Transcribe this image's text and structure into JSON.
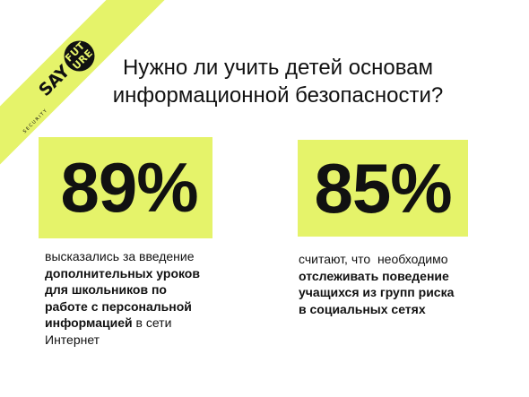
{
  "logo": {
    "say": "SAY",
    "future_line1": "FUT",
    "future_line2": "URE",
    "sub": "SECURITY"
  },
  "title": {
    "line1": "Нужно ли учить детей основам",
    "line2": "информационной безопасности?"
  },
  "stats": [
    {
      "value": "89%",
      "desc_plain_1": "высказались за введение",
      "desc_bold_1": "дополнительных уроков",
      "desc_bold_2": "для школьников по",
      "desc_bold_3": "работе с персональной",
      "desc_bold_4": "информацией",
      "desc_plain_2": " в сети",
      "desc_plain_3": "Интернет"
    },
    {
      "value": "85%",
      "desc_plain_1": "считают, что  необходимо",
      "desc_bold_1": "отслеживать поведение",
      "desc_bold_2": "учащихся из групп риска",
      "desc_bold_3": "в социальных сетях"
    }
  ],
  "colors": {
    "accent": "#e5f36a",
    "text": "#111111",
    "background": "#ffffff"
  }
}
